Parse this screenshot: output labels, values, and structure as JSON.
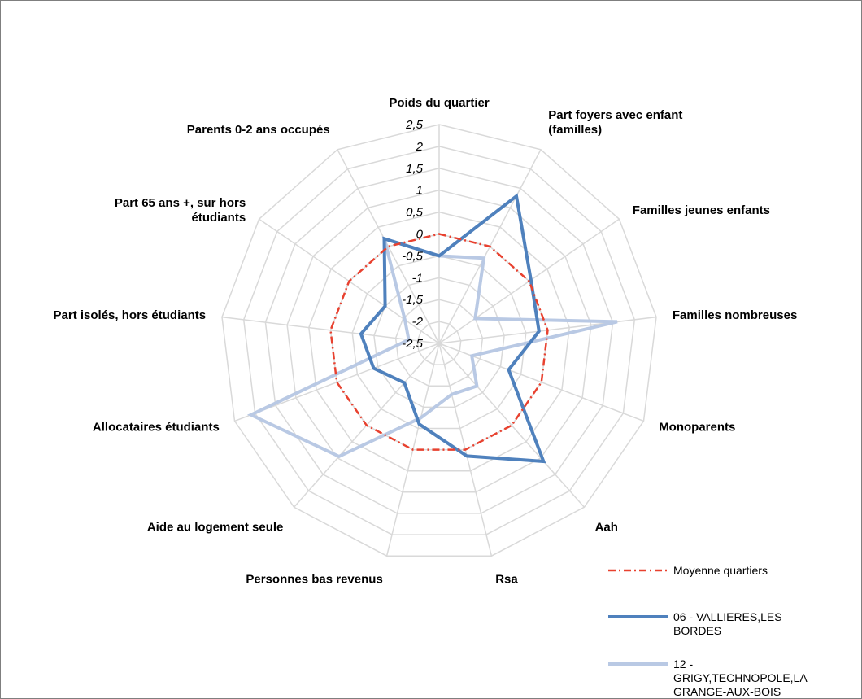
{
  "chart_data": {
    "type": "radar",
    "categories": [
      "Poids du quartier",
      "Part foyers avec enfant (familles)",
      "Familles jeunes enfants",
      "Familles nombreuses",
      "Monoparents",
      "Aah",
      "Rsa",
      "Personnes bas revenus",
      "Aide au logement seule",
      "Allocataires étudiants",
      "Part isolés, hors étudiants",
      "Part 65 ans +, sur hors étudiants",
      "Parents 0-2 ans occupés"
    ],
    "category_label_lines": [
      [
        "Poids du quartier"
      ],
      [
        "Part foyers avec enfant",
        "(familles)"
      ],
      [
        "Familles jeunes enfants"
      ],
      [
        "Familles nombreuses"
      ],
      [
        "Monoparents"
      ],
      [
        "Aah"
      ],
      [
        "Rsa"
      ],
      [
        "Personnes bas revenus"
      ],
      [
        "Aide au logement seule"
      ],
      [
        "Allocataires étudiants"
      ],
      [
        "Part isolés, hors étudiants"
      ],
      [
        "Part 65 ans +, sur hors",
        "étudiants"
      ],
      [
        "Parents 0-2 ans occupés"
      ]
    ],
    "rlim": [
      -2.5,
      2.5
    ],
    "ticks": [
      -2.5,
      -2,
      -1.5,
      -1,
      -0.5,
      0,
      0.5,
      1,
      1.5,
      2,
      2.5
    ],
    "tick_labels": [
      "-2,5",
      "-2",
      "-1,5",
      "-1",
      "-0,5",
      "0",
      "0,5",
      "1",
      "1,5",
      "2",
      "2,5"
    ],
    "grid": true,
    "legend_position": "bottom-right",
    "series": [
      {
        "name": "Moyenne quartiers",
        "color": "#e8412f",
        "style": "dash-dot",
        "values": [
          0,
          0,
          0,
          0,
          0,
          0,
          0,
          0,
          0,
          0,
          0,
          0,
          0
        ]
      },
      {
        "name": "06 - VALLIERES,LES BORDES",
        "color": "#4f81bd",
        "style": "solid",
        "values": [
          -0.5,
          1.3,
          0.05,
          -0.2,
          -0.8,
          1.1,
          0.15,
          -0.6,
          -1.3,
          -0.9,
          -0.7,
          -1.0,
          0.2
        ]
      },
      {
        "name": "12 - GRIGY,TECHNOPOLE,LA GRANGE-AUX-BOIS",
        "color": "#b9c9e4",
        "style": "solid",
        "values": [
          -0.5,
          -0.3,
          -1.5,
          1.6,
          -1.7,
          -1.2,
          -1.3,
          -0.75,
          0.95,
          2.1,
          -1.8,
          -1.55,
          0.2
        ]
      }
    ],
    "legend_label_lines": [
      [
        "Moyenne quartiers"
      ],
      [
        "06 - VALLIERES,LES",
        "BORDES"
      ],
      [
        "12 -",
        "GRIGY,TECHNOPOLE,LA",
        "GRANGE-AUX-BOIS"
      ]
    ]
  }
}
